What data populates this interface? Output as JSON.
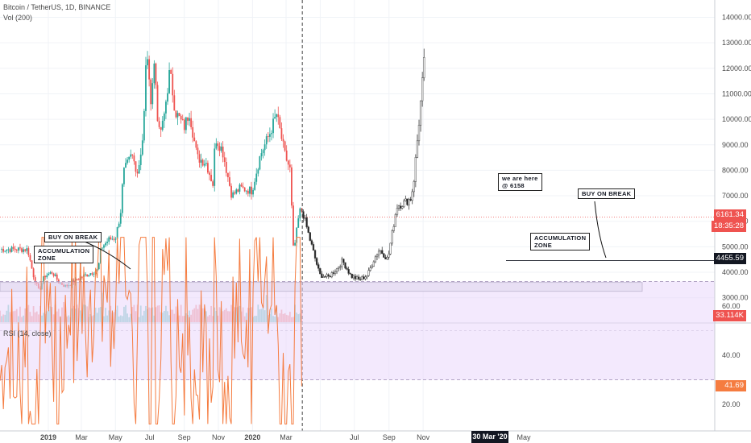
{
  "header": {
    "symbol": "Bitcoin / TetherUS, 1D, BINANCE",
    "volume_label": "Vol (200)",
    "rsi_label": "RSI (14, close)"
  },
  "price_tags": {
    "last_price": "6161.34",
    "countdown": "18:35:28",
    "level": "4455.59",
    "volume": "33.114K",
    "rsi": "41.69"
  },
  "crosshair_date": "30 Mar '20",
  "annotations": {
    "accumulation_left": [
      "ACCUMULATION",
      "ZONE"
    ],
    "buy_left": "BUY ON BREAK",
    "we_are_here": [
      "we are here",
      "@ 6158"
    ],
    "accumulation_right": [
      "ACCUMULATION",
      "ZONE"
    ],
    "buy_right": "BUY ON BREAK"
  },
  "colors": {
    "up": "#26a69a",
    "down": "#ef5350",
    "rsi_line": "#f57c40",
    "rsi_band": "#ead7fb",
    "price_line": "#ef5350",
    "level_line": "#131722",
    "zone": "#e6e8ec"
  },
  "chart_data": [
    {
      "type": "candlestick",
      "title": "Bitcoin / TetherUS, 1D, BINANCE",
      "y_axis": {
        "ticks": [
          3000,
          4000,
          5000,
          6000,
          7000,
          8000,
          9000,
          10000,
          11000,
          12000,
          13000,
          14000
        ],
        "labels": [
          "3000.00",
          "4000.00",
          "5000.00",
          "6000.00",
          "7000.00",
          "8000.00",
          "9000.00",
          "10000.00",
          "11000.00",
          "12000.00",
          "13000.00",
          "14000.00"
        ],
        "scale": "linear"
      },
      "x_axis": {
        "ticks": [
          "2019",
          "Mar",
          "May",
          "Jul",
          "Sep",
          "Nov",
          "2020",
          "Mar",
          "May",
          "Jul",
          "Sep",
          "Nov"
        ]
      },
      "series_close": [
        [
          "2018-11-25",
          4900
        ],
        [
          "2018-12-05",
          3900
        ],
        [
          "2018-12-15",
          3250
        ],
        [
          "2018-12-25",
          3850
        ],
        [
          "2019-01-08",
          4000
        ],
        [
          "2019-01-20",
          3600
        ],
        [
          "2019-02-01",
          3450
        ],
        [
          "2019-02-15",
          3620
        ],
        [
          "2019-03-01",
          3820
        ],
        [
          "2019-03-15",
          3950
        ],
        [
          "2019-03-31",
          4100
        ],
        [
          "2019-04-05",
          4950
        ],
        [
          "2019-04-20",
          5300
        ],
        [
          "2019-05-01",
          5350
        ],
        [
          "2019-05-10",
          6300
        ],
        [
          "2019-05-15",
          7900
        ],
        [
          "2019-05-30",
          8600
        ],
        [
          "2019-06-10",
          7900
        ],
        [
          "2019-06-20",
          9500
        ],
        [
          "2019-06-26",
          13000
        ],
        [
          "2019-07-02",
          10600
        ],
        [
          "2019-07-10",
          12300
        ],
        [
          "2019-07-17",
          9400
        ],
        [
          "2019-07-25",
          9800
        ],
        [
          "2019-08-06",
          11900
        ],
        [
          "2019-08-16",
          10300
        ],
        [
          "2019-09-01",
          9700
        ],
        [
          "2019-09-10",
          10300
        ],
        [
          "2019-09-24",
          8500
        ],
        [
          "2019-10-10",
          8300
        ],
        [
          "2019-10-23",
          7400
        ],
        [
          "2019-10-26",
          9300
        ],
        [
          "2019-11-08",
          8800
        ],
        [
          "2019-11-25",
          7000
        ],
        [
          "2019-12-10",
          7300
        ],
        [
          "2019-12-31",
          7200
        ],
        [
          "2020-01-15",
          8600
        ],
        [
          "2020-01-31",
          9400
        ],
        [
          "2020-02-13",
          10200
        ],
        [
          "2020-02-28",
          8600
        ],
        [
          "2020-03-10",
          7900
        ],
        [
          "2020-03-12",
          4900
        ],
        [
          "2020-03-16",
          5000
        ],
        [
          "2020-03-25",
          6400
        ],
        [
          "2020-03-30",
          6400
        ],
        [
          "2020-04-15",
          5100
        ],
        [
          "2020-04-30",
          3900
        ],
        [
          "2020-05-15",
          3800
        ],
        [
          "2020-05-31",
          4150
        ],
        [
          "2020-06-10",
          4450
        ],
        [
          "2020-06-25",
          3850
        ],
        [
          "2020-07-10",
          3700
        ],
        [
          "2020-07-25",
          3900
        ],
        [
          "2020-08-05",
          4500
        ],
        [
          "2020-08-15",
          4900
        ],
        [
          "2020-08-30",
          4500
        ],
        [
          "2020-09-05",
          5300
        ],
        [
          "2020-09-15",
          6600
        ],
        [
          "2020-09-30",
          6750
        ],
        [
          "2020-10-10",
          6900
        ],
        [
          "2020-10-15",
          7500
        ],
        [
          "2020-10-25",
          10000
        ],
        [
          "2020-11-05",
          12750
        ]
      ],
      "projected_from": "2020-03-30",
      "horizontal_lines": [
        6161.34,
        4455.59
      ],
      "zone_range": [
        3250,
        3600
      ]
    },
    {
      "type": "line",
      "title": "RSI (14, close)",
      "y_axis": {
        "ticks": [
          20,
          40,
          60,
          80
        ],
        "labels": [
          "20.00",
          "40.00",
          "60.00",
          "80.00"
        ]
      },
      "bands": {
        "upper": 70,
        "lower": 30
      },
      "current_value": 41.69
    }
  ]
}
